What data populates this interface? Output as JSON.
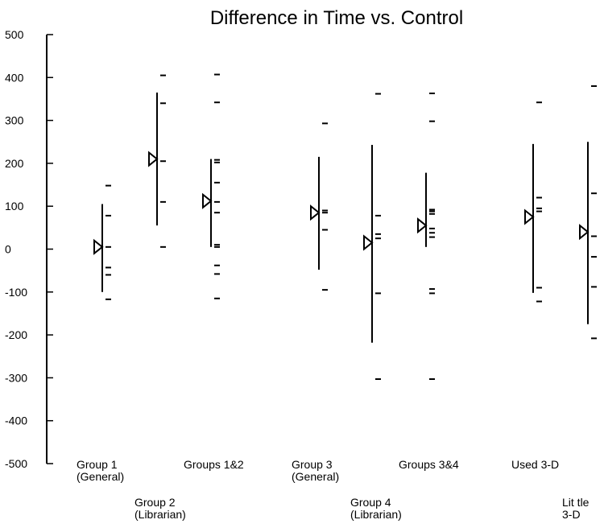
{
  "chart_data": {
    "type": "scatter",
    "title": "Difference in Time vs. Control",
    "xlabel": "",
    "ylabel": "",
    "ylim": [
      -500,
      500
    ],
    "yticks": [
      500,
      400,
      300,
      200,
      100,
      0,
      -100,
      -200,
      -300,
      -400,
      -500
    ],
    "grid": false,
    "series": [
      {
        "label": [
          "Group 1",
          "(General)"
        ],
        "label_row": "upper",
        "range": [
          -100,
          105
        ],
        "mean": 5,
        "points": [
          148,
          78,
          5,
          -43,
          -60,
          -117
        ]
      },
      {
        "label": [
          "Group 2",
          "(Librarian)"
        ],
        "label_row": "lower",
        "range": [
          55,
          365
        ],
        "mean": 210,
        "points": [
          405,
          340,
          205,
          110,
          5
        ]
      },
      {
        "label": [
          "Groups 1&2"
        ],
        "label_row": "upper",
        "range": [
          5,
          210
        ],
        "mean": 112,
        "points": [
          407,
          342,
          208,
          202,
          155,
          110,
          85,
          10,
          5,
          -38,
          -58,
          -115
        ]
      },
      {
        "label": [
          "Group 3",
          "(General)"
        ],
        "label_row": "upper",
        "range": [
          -48,
          215
        ],
        "mean": 85,
        "points": [
          293,
          90,
          85,
          45,
          -95
        ]
      },
      {
        "label": [
          "Group 4",
          "(Librarian)"
        ],
        "label_row": "lower",
        "range": [
          -218,
          243
        ],
        "mean": 15,
        "points": [
          362,
          78,
          35,
          25,
          -103,
          -303
        ]
      },
      {
        "label": [
          "Groups 3&4"
        ],
        "label_row": "upper",
        "range": [
          5,
          178
        ],
        "mean": 55,
        "points": [
          363,
          298,
          92,
          88,
          82,
          48,
          38,
          28,
          -93,
          -103,
          -303
        ]
      },
      {
        "label": [
          "Used  3-D"
        ],
        "label_row": "upper",
        "range": [
          -102,
          245
        ],
        "mean": 75,
        "points": [
          342,
          120,
          95,
          88,
          -90,
          -122
        ]
      },
      {
        "label": [
          "Lit tle",
          "3-D"
        ],
        "label_row": "lower",
        "range": [
          -175,
          250
        ],
        "mean": 40,
        "points": [
          380,
          130,
          30,
          -18,
          -88,
          -208
        ]
      }
    ]
  }
}
